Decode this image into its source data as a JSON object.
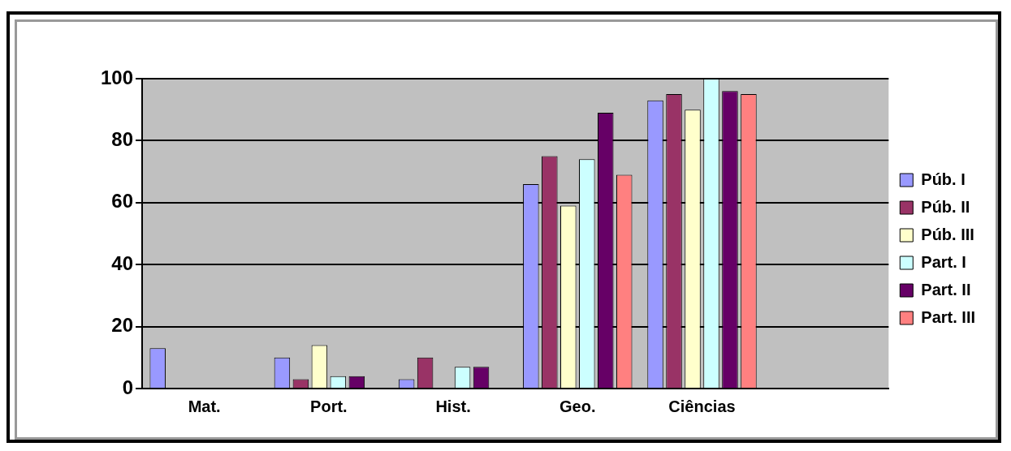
{
  "chart_data": {
    "type": "bar",
    "categories": [
      "Mat.",
      "Port.",
      "Hist.",
      "Geo.",
      "Ciências",
      null
    ],
    "series": [
      {
        "name": "Púb. I",
        "color": "#9999ff",
        "values": [
          13,
          10,
          3,
          66,
          93,
          null
        ]
      },
      {
        "name": "Púb. II",
        "color": "#993366",
        "values": [
          0,
          3,
          10,
          75,
          95,
          null
        ]
      },
      {
        "name": "Púb. III",
        "color": "#ffffcc",
        "values": [
          0,
          14,
          0,
          59,
          90,
          null
        ]
      },
      {
        "name": "Part. I",
        "color": "#ccffff",
        "values": [
          0,
          4,
          7,
          74,
          100,
          null
        ]
      },
      {
        "name": "Part. II",
        "color": "#660066",
        "values": [
          0,
          4,
          7,
          89,
          96,
          null
        ]
      },
      {
        "name": "Part. III",
        "color": "#ff8080",
        "values": [
          0,
          0,
          0,
          69,
          95,
          null
        ]
      }
    ],
    "ylim": [
      0,
      100
    ],
    "yticks": [
      0,
      20,
      40,
      60,
      80,
      100
    ],
    "grid": "y",
    "legend": "right"
  }
}
